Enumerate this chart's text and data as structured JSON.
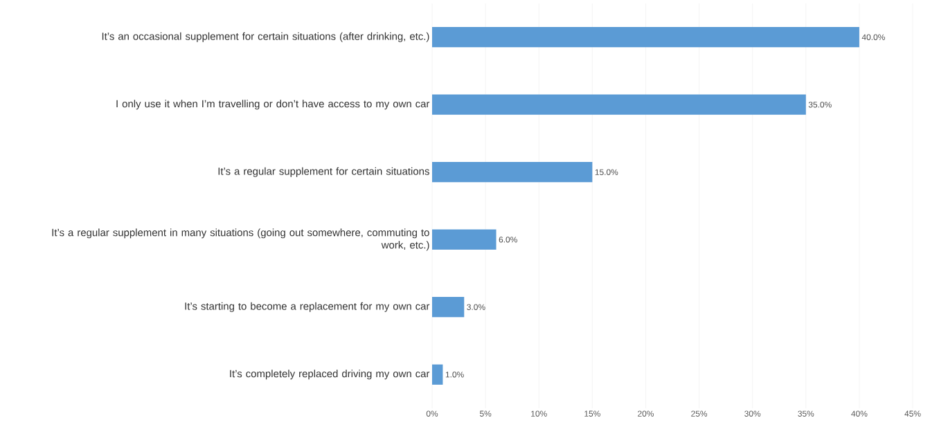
{
  "chart_data": {
    "type": "bar",
    "orientation": "horizontal",
    "categories": [
      "It’s an occasional supplement for certain situations (after drinking, etc.)",
      "I only use it when I’m travelling or don’t have access to my own car",
      "It’s a regular supplement for certain situations",
      "It’s a regular supplement in many situations (going out somewhere, commuting to work, etc.)",
      "It’s starting to become a replacement for my own car",
      "It’s completely replaced driving my own car"
    ],
    "values": [
      40,
      35,
      15,
      6,
      3,
      1
    ],
    "value_labels": [
      "40.0%",
      "35.0%",
      "15.0%",
      "6.0%",
      "3.0%",
      "1.0%"
    ],
    "color": "#5b9bd5",
    "xlim": [
      0,
      45
    ],
    "xticks": [
      {
        "value": 0,
        "label": "0%"
      },
      {
        "value": 5,
        "label": "5%"
      },
      {
        "value": 10,
        "label": "10%"
      },
      {
        "value": 15,
        "label": "15%"
      },
      {
        "value": 20,
        "label": "20%"
      },
      {
        "value": 25,
        "label": "25%"
      },
      {
        "value": 30,
        "label": "30%"
      },
      {
        "value": 35,
        "label": "35%"
      },
      {
        "value": 40,
        "label": "40%"
      },
      {
        "value": 45,
        "label": "45%"
      }
    ],
    "grid": "x"
  }
}
